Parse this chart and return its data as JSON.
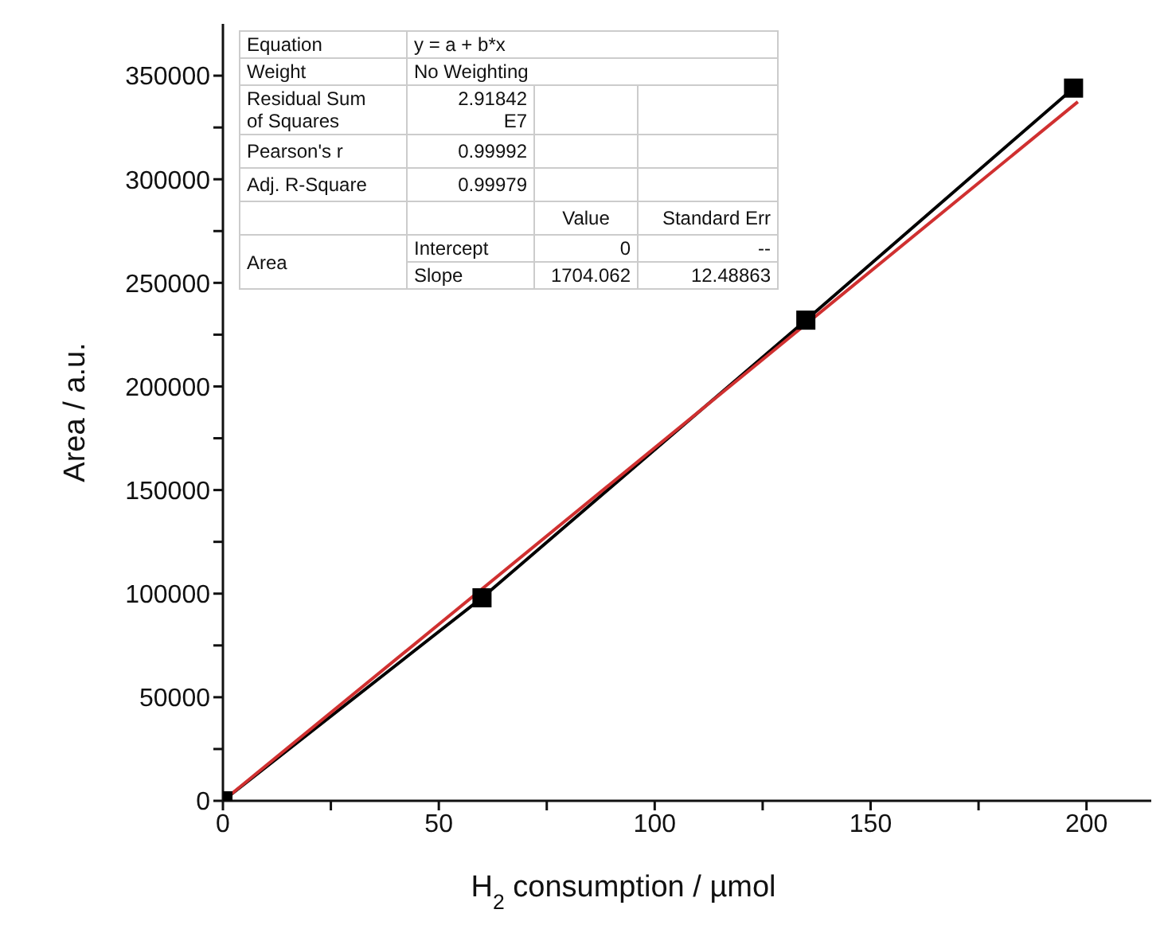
{
  "chart_data": {
    "type": "line",
    "xlabel": "H$_{2}$ consumption / µmol",
    "ylabel": "Area / a.u.",
    "xlim": [
      0,
      215
    ],
    "ylim": [
      0,
      375000
    ],
    "xticks": [
      0,
      {
        "value": 25,
        "label": null
      },
      50,
      {
        "value": 75,
        "label": null
      },
      100,
      {
        "value": 125,
        "label": null
      },
      150,
      {
        "value": 175,
        "label": null
      },
      200
    ],
    "yticks": [
      0,
      {
        "value": 25000,
        "label": null
      },
      50000,
      {
        "value": 75000,
        "label": null
      },
      100000,
      {
        "value": 125000,
        "label": null
      },
      150000,
      {
        "value": 175000,
        "label": null
      },
      200000,
      {
        "value": 225000,
        "label": null
      },
      250000,
      {
        "value": 275000,
        "label": null
      },
      300000,
      {
        "value": 325000,
        "label": null
      },
      350000
    ],
    "series": [
      {
        "color": "#000000",
        "marker": "square",
        "x": [
          0,
          60,
          135,
          197
        ],
        "values": [
          0,
          98000,
          232000,
          344000
        ]
      },
      {
        "color": "#d03030",
        "marker": "none",
        "x": [
          0,
          198
        ],
        "values": [
          0,
          337400
        ]
      }
    ],
    "grid": false,
    "annotations": [
      "Equation",
      "y = a + b*x",
      "Weight",
      "No Weighting",
      "Residual Sum of Squares",
      "2.91842 E7",
      "Pearson's r",
      "0.99992",
      "Adj. R-Square",
      "0.99979",
      "Value",
      "Standard Err",
      "Area",
      "Intercept",
      "0",
      "--",
      "Slope",
      "1704.062",
      "12.48863"
    ]
  }
}
